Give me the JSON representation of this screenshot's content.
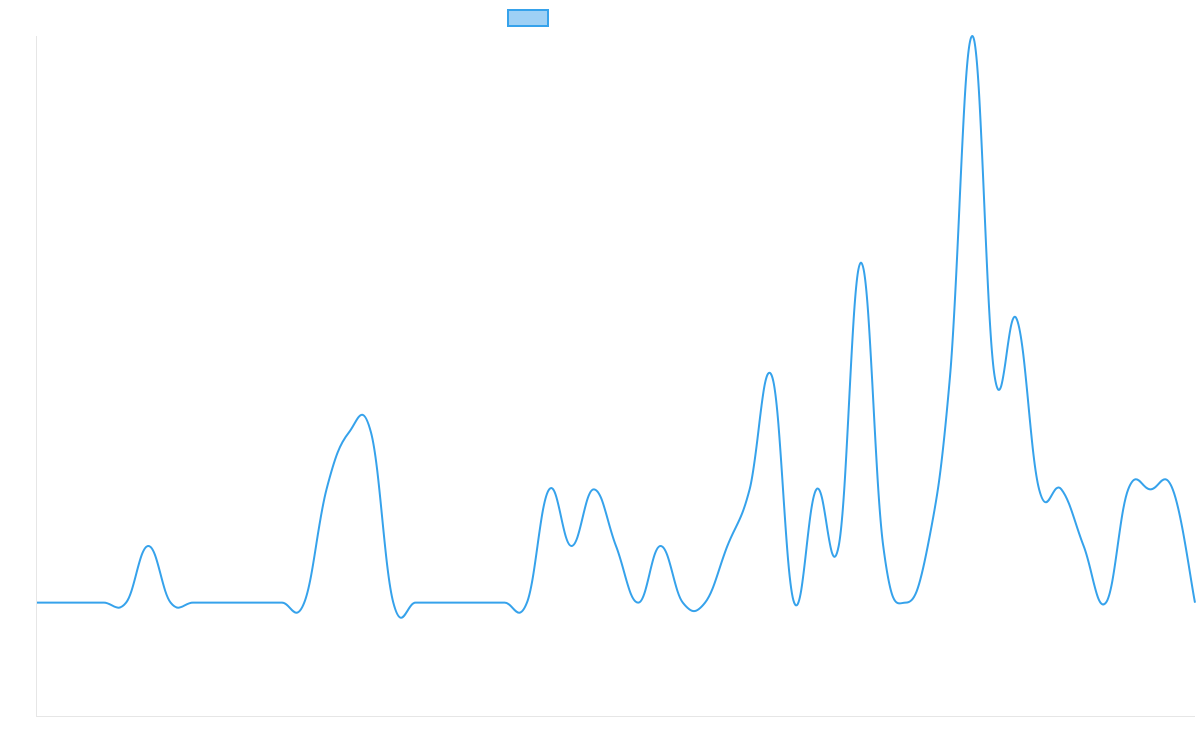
{
  "chart_data": {
    "type": "line",
    "title": "",
    "xlabel": "",
    "ylabel": "",
    "legend": {
      "position": "top",
      "entries": [
        {
          "label": "",
          "color": "#36a2eb"
        }
      ]
    },
    "grid": false,
    "ylim": [
      -2,
      10
    ],
    "xlim": [
      0,
      52
    ],
    "series": [
      {
        "color": "#36a2eb",
        "fill_color": "#9ed0f5",
        "values": [
          0,
          0,
          0,
          0,
          0,
          1,
          0,
          0,
          0,
          0,
          0,
          0,
          0,
          2,
          3,
          3,
          0,
          0,
          0,
          0,
          0,
          0,
          0,
          2,
          1,
          2,
          1,
          0,
          1,
          0,
          0,
          1,
          2,
          4,
          0,
          2,
          1,
          6,
          1,
          0,
          1,
          4,
          10,
          4,
          5,
          2,
          2,
          1,
          0,
          2,
          2,
          2,
          0
        ]
      }
    ]
  }
}
